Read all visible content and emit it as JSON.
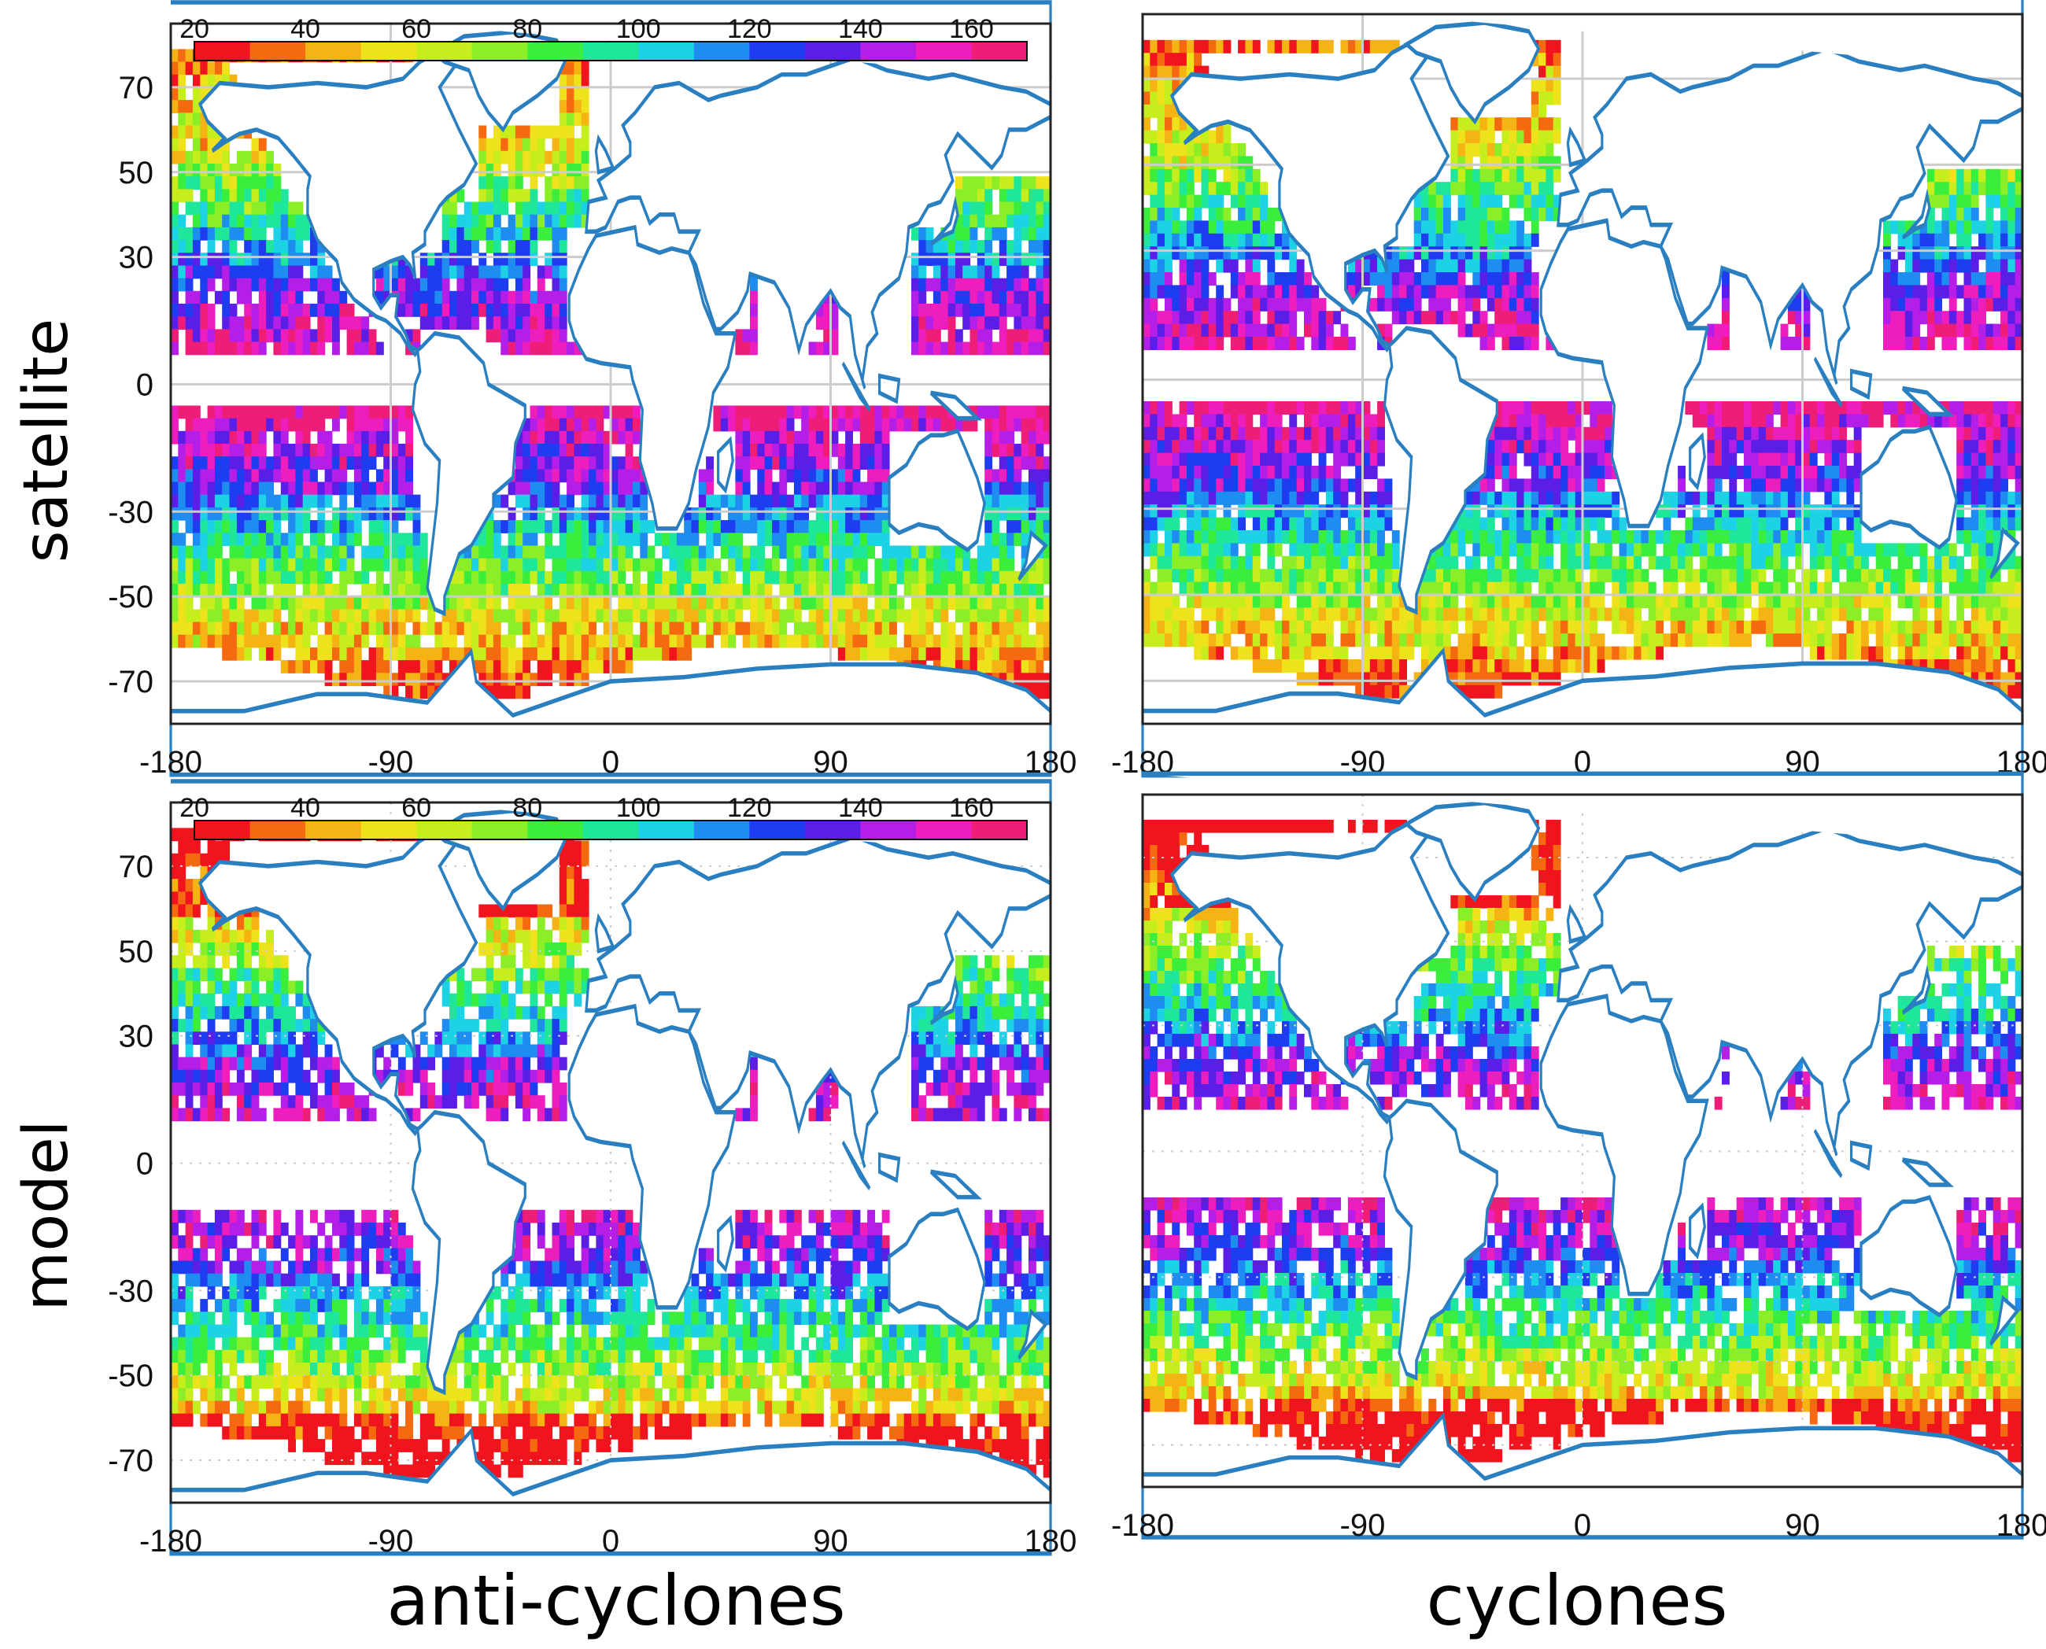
{
  "figure": {
    "row_labels": [
      "satellite",
      "model"
    ],
    "col_labels": [
      "anti-cyclones",
      "cyclones"
    ],
    "x_ticks": [
      "-180",
      "-90",
      "0",
      "90",
      "180"
    ],
    "y_ticks": [
      "70",
      "50",
      "30",
      "0",
      "-30",
      "-50",
      "-70"
    ],
    "colorbar": {
      "ticks": [
        "20",
        "40",
        "60",
        "80",
        "100",
        "120",
        "140",
        "160"
      ],
      "colors": [
        "#f0141e",
        "#f56a10",
        "#f5b414",
        "#eee21c",
        "#c5ee1c",
        "#8cee26",
        "#3cee3c",
        "#1ee69a",
        "#1ed2e6",
        "#1e8cf0",
        "#1e3cf0",
        "#5a1ee6",
        "#b41ee6",
        "#ee1ebe",
        "#ee1e78"
      ]
    },
    "coast_color": "#2a7fc0"
  },
  "chart_data": [
    {
      "type": "heatmap",
      "panel": "satellite / anti-cyclones",
      "xlim": [
        -180,
        180
      ],
      "ylim": [
        -80,
        85
      ],
      "xticks": [
        -180,
        -90,
        0,
        90,
        180
      ],
      "yticks": [
        70,
        50,
        30,
        0,
        -30,
        -50,
        -70
      ],
      "colorbar_range": [
        20,
        160
      ],
      "colorbar_ticks": [
        20,
        40,
        60,
        80,
        100,
        120,
        140,
        160
      ],
      "grid": true
    },
    {
      "type": "heatmap",
      "panel": "satellite / cyclones",
      "xlim": [
        -180,
        180
      ],
      "ylim": [
        -80,
        85
      ],
      "xticks": [
        -180,
        -90,
        0,
        90,
        180
      ],
      "grid": true
    },
    {
      "type": "heatmap",
      "panel": "model / anti-cyclones",
      "xlim": [
        -180,
        180
      ],
      "ylim": [
        -80,
        85
      ],
      "xticks": [
        -180,
        -90,
        0,
        90,
        180
      ],
      "yticks": [
        70,
        50,
        30,
        0,
        -30,
        -50,
        -70
      ],
      "colorbar_range": [
        20,
        160
      ],
      "colorbar_ticks": [
        20,
        40,
        60,
        80,
        100,
        120,
        140,
        160
      ],
      "grid": true
    },
    {
      "type": "heatmap",
      "panel": "model / cyclones",
      "xlim": [
        -180,
        180
      ],
      "ylim": [
        -80,
        85
      ],
      "xticks": [
        -180,
        -90,
        0,
        90,
        180
      ],
      "grid": true
    }
  ]
}
